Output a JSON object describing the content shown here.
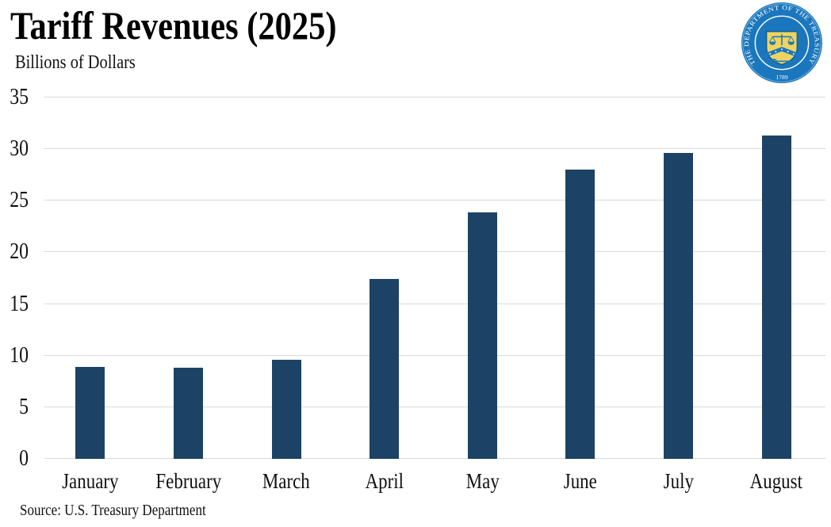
{
  "header": {
    "title": "Tariff Revenues (2025)",
    "subtitle": "Billions of Dollars",
    "logo": {
      "name": "us-department-of-the-treasury-seal",
      "ring_text": "THE DEPARTMENT OF THE TREASURY",
      "year": "1789",
      "blue": "#1b77bd",
      "gold": "#eed45f"
    }
  },
  "source_note": "Source: U.S. Treasury Department",
  "chart_data": {
    "type": "bar",
    "title": "Tariff Revenues (2025)",
    "ylabel": "Billions of Dollars",
    "xlabel": "",
    "categories": [
      "January",
      "February",
      "March",
      "April",
      "May",
      "June",
      "July",
      "August"
    ],
    "values": [
      8.9,
      8.8,
      9.6,
      17.4,
      23.9,
      28.0,
      29.6,
      31.3
    ],
    "ylim": [
      0,
      35
    ],
    "yticks": [
      0,
      5,
      10,
      15,
      20,
      25,
      30,
      35
    ],
    "grid": true,
    "legend_position": "none",
    "bar_color": "#1c4365",
    "gridline_color": "#d9d9d9",
    "source": "Source: U.S. Treasury Department"
  }
}
